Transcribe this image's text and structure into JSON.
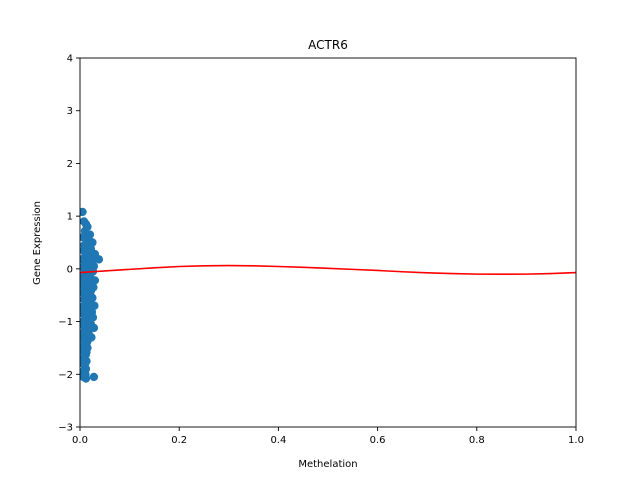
{
  "chart_data": {
    "type": "scatter",
    "title": "ACTR6",
    "xlabel": "Methelation",
    "ylabel": "Gene Expression",
    "xlim": [
      0.0,
      1.0
    ],
    "ylim": [
      -3,
      4
    ],
    "xticks": [
      "0.0",
      "0.2",
      "0.4",
      "0.6",
      "0.8",
      "1.0"
    ],
    "yticks": [
      "−3",
      "−2",
      "−1",
      "0",
      "1",
      "2",
      "3",
      "4"
    ],
    "grid": false,
    "scatter_color": "#1f77b4",
    "fit_color": "#ff0000",
    "series": [
      {
        "kind": "points",
        "x": [
          0.005,
          0.008,
          0.012,
          0.015,
          0.01,
          0.02,
          0.006,
          0.018,
          0.025,
          0.009,
          0.014,
          0.022,
          0.007,
          0.016,
          0.03,
          0.011,
          0.019,
          0.004,
          0.024,
          0.013,
          0.017,
          0.028,
          0.006,
          0.021,
          0.038,
          0.01,
          0.015,
          0.026,
          0.008,
          0.012,
          0.02,
          0.005,
          0.023,
          0.03,
          0.009,
          0.014,
          0.018,
          0.007,
          0.027,
          0.011,
          0.016,
          0.022,
          0.006,
          0.013,
          0.019,
          0.01,
          0.025,
          0.008,
          0.015,
          0.02,
          0.012,
          0.017,
          0.029,
          0.005,
          0.021,
          0.009,
          0.014,
          0.024,
          0.007,
          0.018,
          0.011,
          0.026,
          0.01,
          0.016,
          0.006,
          0.013,
          0.022,
          0.008,
          0.019,
          0.012,
          0.015,
          0.028,
          0.009,
          0.017,
          0.007,
          0.011,
          0.02,
          0.013,
          0.006,
          0.016,
          0.01,
          0.014,
          0.023,
          0.009,
          0.012,
          0.008,
          0.018,
          0.011,
          0.006,
          0.015,
          0.01,
          0.013,
          0.025,
          0.009,
          0.012,
          0.008,
          0.014,
          0.011,
          0.007,
          0.01,
          0.012,
          0.006,
          0.009,
          0.011,
          0.008,
          0.01,
          0.007,
          0.013,
          0.012,
          0.028
        ],
        "y": [
          1.08,
          0.9,
          0.85,
          0.8,
          0.72,
          0.65,
          0.6,
          0.55,
          0.5,
          0.45,
          0.42,
          0.38,
          0.35,
          0.3,
          0.28,
          0.25,
          0.2,
          0.18,
          0.15,
          0.12,
          0.1,
          0.05,
          0.03,
          0.0,
          0.18,
          -0.02,
          -0.05,
          -0.05,
          -0.1,
          -0.12,
          -0.15,
          -0.18,
          -0.2,
          -0.22,
          -0.25,
          -0.28,
          -0.3,
          -0.32,
          -0.35,
          -0.38,
          -0.4,
          -0.42,
          -0.45,
          -0.48,
          -0.5,
          -0.52,
          -0.55,
          -0.58,
          -0.6,
          -0.62,
          -0.65,
          -0.68,
          -0.7,
          -0.72,
          -0.75,
          -0.78,
          -0.8,
          -0.82,
          -0.85,
          -0.88,
          -0.9,
          -0.92,
          -0.95,
          -0.98,
          -1.0,
          -1.02,
          -1.05,
          -1.08,
          -1.1,
          -1.12,
          -1.15,
          -1.12,
          -1.18,
          -1.2,
          -1.22,
          -1.25,
          -1.28,
          -1.3,
          -1.32,
          -1.35,
          -1.38,
          -1.4,
          -1.3,
          -1.42,
          -1.45,
          -1.48,
          -1.25,
          -1.52,
          -1.55,
          -1.5,
          -1.6,
          -1.58,
          -0.92,
          -1.65,
          -1.62,
          -1.7,
          -1.2,
          -1.75,
          -1.8,
          -1.85,
          -1.9,
          -1.95,
          -1.82,
          -2.0,
          -1.68,
          -2.02,
          -2.05,
          -1.75,
          -2.08,
          -2.05
        ]
      },
      {
        "kind": "fit",
        "x": [
          0.0,
          0.05,
          0.1,
          0.15,
          0.2,
          0.25,
          0.3,
          0.35,
          0.4,
          0.45,
          0.5,
          0.55,
          0.6,
          0.65,
          0.7,
          0.75,
          0.8,
          0.85,
          0.9,
          0.95,
          1.0
        ],
        "y": [
          -0.07,
          -0.04,
          -0.01,
          0.02,
          0.045,
          0.058,
          0.062,
          0.058,
          0.045,
          0.03,
          0.01,
          -0.01,
          -0.03,
          -0.055,
          -0.075,
          -0.09,
          -0.1,
          -0.102,
          -0.1,
          -0.09,
          -0.07
        ]
      }
    ]
  }
}
